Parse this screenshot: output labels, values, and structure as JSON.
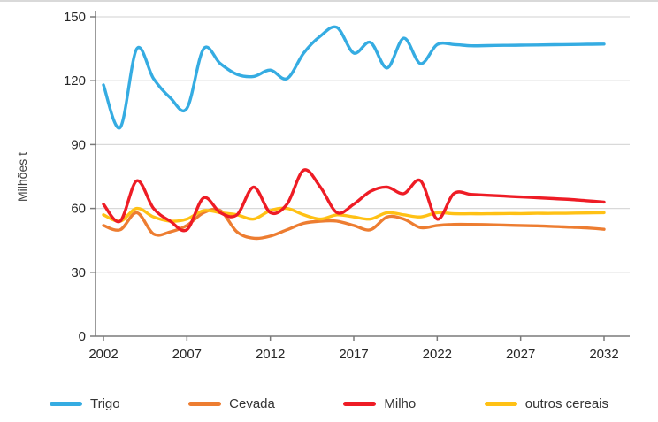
{
  "chart_data": {
    "type": "line",
    "ylabel": "Milhões t",
    "ylim": [
      0,
      150
    ],
    "yticks": [
      0,
      30,
      60,
      90,
      120,
      150
    ],
    "xticks": [
      2002,
      2007,
      2012,
      2017,
      2022,
      2027,
      2032
    ],
    "grid": "horizontal",
    "legend_position": "bottom",
    "colors": {
      "grid": "#d9d9d9",
      "axis": "#7a7a7a"
    },
    "x": [
      2002,
      2003,
      2004,
      2005,
      2006,
      2007,
      2008,
      2009,
      2010,
      2011,
      2012,
      2013,
      2014,
      2015,
      2016,
      2017,
      2018,
      2019,
      2020,
      2021,
      2022,
      2023,
      2024,
      2025,
      2026,
      2027,
      2028,
      2029,
      2030,
      2031,
      2032
    ],
    "series": [
      {
        "name": "Trigo",
        "color": "#35ace2",
        "values": [
          118,
          98,
          135,
          121,
          112,
          107,
          135,
          128,
          123,
          122,
          125,
          121,
          133,
          141,
          145,
          133,
          138,
          126,
          140,
          128,
          137,
          137,
          136.4,
          136.5,
          136.6,
          136.7,
          136.8,
          136.9,
          137,
          137.1,
          137.2
        ]
      },
      {
        "name": "Cevada",
        "color": "#ed7d31",
        "values": [
          52,
          50,
          58,
          48,
          49,
          52,
          58,
          59,
          49,
          46,
          47,
          50,
          53,
          54,
          54,
          52,
          50,
          56,
          55,
          51,
          52,
          52.5,
          52.5,
          52.4,
          52.2,
          52,
          51.8,
          51.5,
          51.2,
          50.8,
          50.2
        ]
      },
      {
        "name": "Milho",
        "color": "#ee1c25",
        "values": [
          62,
          54,
          73,
          60,
          54,
          50,
          65,
          58,
          57,
          70,
          58,
          62,
          78,
          70,
          58,
          62,
          68,
          70,
          67,
          73,
          55,
          67,
          66.6,
          66.2,
          65.8,
          65.4,
          65,
          64.6,
          64.2,
          63.6,
          63
        ]
      },
      {
        "name": "outros cereais",
        "color": "#ffc115",
        "values": [
          57,
          54,
          60,
          56,
          54,
          55,
          59,
          58,
          57,
          55,
          59,
          60,
          57,
          55,
          57,
          56,
          55,
          58,
          57,
          56,
          58,
          57.5,
          57.5,
          57.5,
          57.6,
          57.6,
          57.7,
          57.7,
          57.8,
          57.9,
          58
        ]
      }
    ]
  }
}
